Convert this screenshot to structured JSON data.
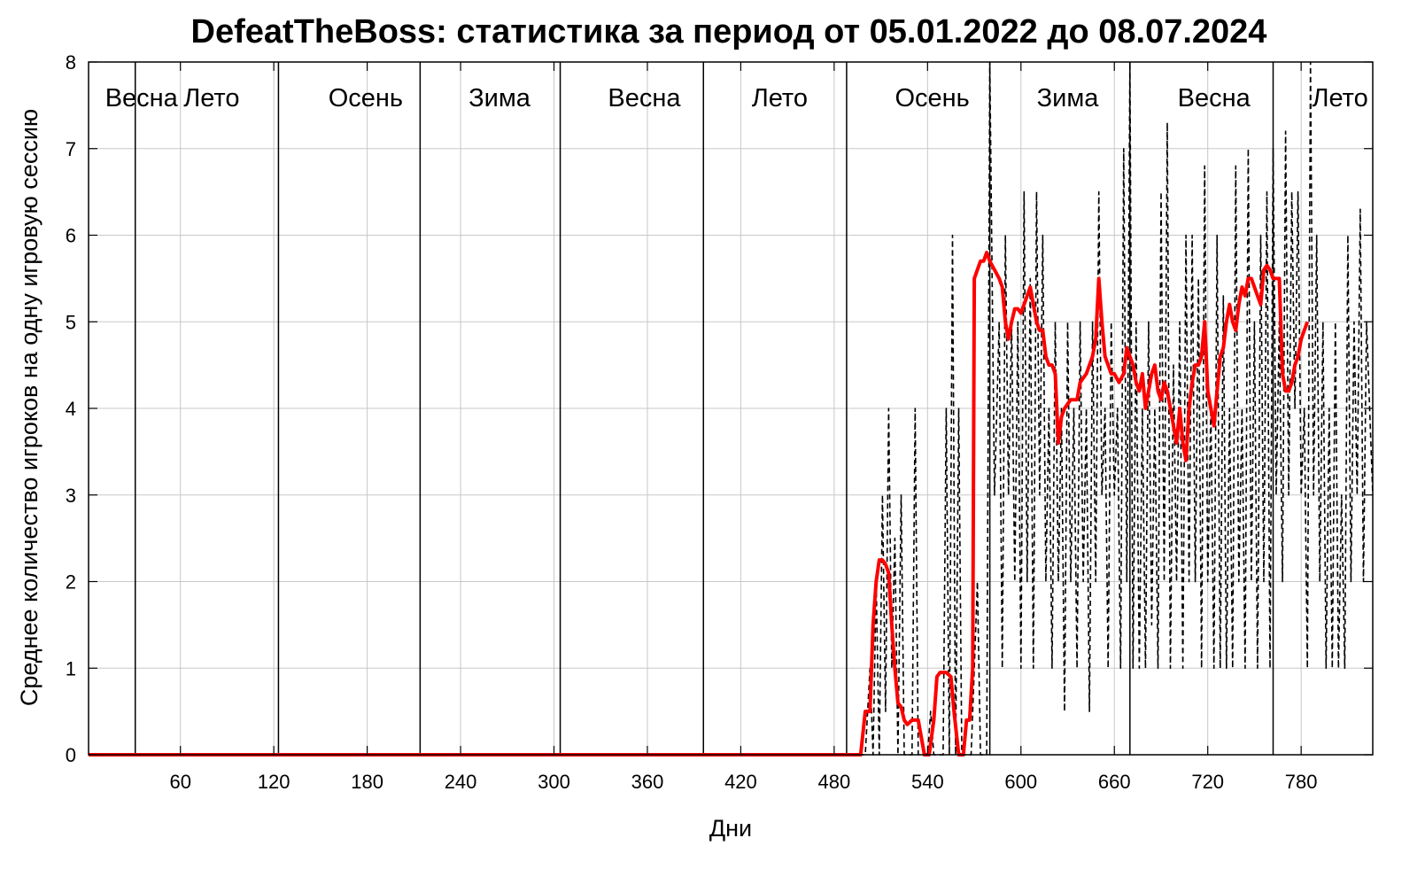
{
  "chart_data": {
    "type": "line",
    "title": "DefeatTheBoss: статистика за период от 05.01.2022 до 08.07.2024",
    "xlabel": "Дни",
    "ylabel": "Среднее количество игроков на одну игровую сессию",
    "xlim": [
      1,
      826
    ],
    "ylim": [
      0,
      8
    ],
    "x_ticks": [
      60,
      120,
      180,
      240,
      300,
      360,
      420,
      480,
      540,
      600,
      660,
      720,
      780
    ],
    "y_ticks": [
      0,
      1,
      2,
      3,
      4,
      5,
      6,
      7,
      8
    ],
    "grid": true,
    "season_boundaries": [
      31,
      123,
      214,
      304,
      396,
      488,
      580,
      670,
      762
    ],
    "season_labels": [
      {
        "label": "Весна",
        "x": 35
      },
      {
        "label": "Лето",
        "x": 80
      },
      {
        "label": "Осень",
        "x": 179
      },
      {
        "label": "Зима",
        "x": 265
      },
      {
        "label": "Весна",
        "x": 358
      },
      {
        "label": "Лето",
        "x": 445
      },
      {
        "label": "Осень",
        "x": 543
      },
      {
        "label": "Зима",
        "x": 630
      },
      {
        "label": "Весна",
        "x": 724
      },
      {
        "label": "Лето",
        "x": 805
      }
    ],
    "series": [
      {
        "style": "dashed",
        "color": "#000000",
        "points": [
          [
            1,
            0
          ],
          [
            500,
            0
          ],
          [
            503,
            1
          ],
          [
            505,
            0
          ],
          [
            507,
            2
          ],
          [
            509,
            0
          ],
          [
            511,
            3
          ],
          [
            513,
            0.5
          ],
          [
            515,
            4
          ],
          [
            517,
            1
          ],
          [
            519,
            2.5
          ],
          [
            521,
            0
          ],
          [
            523,
            3
          ],
          [
            525,
            0
          ],
          [
            530,
            0
          ],
          [
            532,
            4
          ],
          [
            534,
            0
          ],
          [
            540,
            0
          ],
          [
            542,
            0.5
          ],
          [
            544,
            0
          ],
          [
            550,
            0
          ],
          [
            552,
            4
          ],
          [
            554,
            0
          ],
          [
            556,
            6
          ],
          [
            558,
            0
          ],
          [
            560,
            4
          ],
          [
            562,
            0
          ],
          [
            568,
            0
          ],
          [
            570,
            1
          ],
          [
            572,
            2
          ],
          [
            574,
            0
          ],
          [
            578,
            0
          ],
          [
            580,
            8
          ],
          [
            583,
            3
          ],
          [
            586,
            5
          ],
          [
            588,
            1
          ],
          [
            590,
            6
          ],
          [
            592,
            3
          ],
          [
            594,
            5
          ],
          [
            596,
            2
          ],
          [
            598,
            5
          ],
          [
            600,
            1
          ],
          [
            602,
            6.5
          ],
          [
            604,
            2
          ],
          [
            606,
            5.5
          ],
          [
            608,
            1
          ],
          [
            610,
            6.5
          ],
          [
            612,
            3
          ],
          [
            614,
            6
          ],
          [
            616,
            2
          ],
          [
            618,
            4
          ],
          [
            620,
            1
          ],
          [
            622,
            5
          ],
          [
            624,
            2
          ],
          [
            626,
            4
          ],
          [
            628,
            0.5
          ],
          [
            630,
            5
          ],
          [
            632,
            2
          ],
          [
            634,
            4
          ],
          [
            636,
            1
          ],
          [
            638,
            5
          ],
          [
            640,
            2
          ],
          [
            642,
            4
          ],
          [
            644,
            0.5
          ],
          [
            646,
            5
          ],
          [
            648,
            2
          ],
          [
            650,
            6.5
          ],
          [
            652,
            3
          ],
          [
            654,
            4
          ],
          [
            656,
            1
          ],
          [
            658,
            5
          ],
          [
            660,
            3
          ],
          [
            662,
            4
          ],
          [
            664,
            1
          ],
          [
            666,
            7
          ],
          [
            668,
            2
          ],
          [
            670,
            8
          ],
          [
            672,
            1
          ],
          [
            674,
            5
          ],
          [
            676,
            1
          ],
          [
            678,
            4
          ],
          [
            680,
            1
          ],
          [
            682,
            5
          ],
          [
            684,
            1.5
          ],
          [
            686,
            4
          ],
          [
            688,
            1
          ],
          [
            690,
            6.5
          ],
          [
            692,
            2
          ],
          [
            694,
            7.3
          ],
          [
            696,
            1
          ],
          [
            698,
            4.5
          ],
          [
            700,
            2
          ],
          [
            702,
            5
          ],
          [
            704,
            1
          ],
          [
            706,
            6
          ],
          [
            708,
            2
          ],
          [
            710,
            6
          ],
          [
            712,
            2
          ],
          [
            714,
            5.5
          ],
          [
            716,
            1
          ],
          [
            718,
            6.8
          ],
          [
            720,
            2
          ],
          [
            722,
            4
          ],
          [
            724,
            1
          ],
          [
            726,
            6
          ],
          [
            728,
            1
          ],
          [
            730,
            5.3
          ],
          [
            732,
            1
          ],
          [
            734,
            4
          ],
          [
            736,
            1
          ],
          [
            738,
            6.8
          ],
          [
            740,
            2
          ],
          [
            742,
            4
          ],
          [
            744,
            1
          ],
          [
            746,
            7
          ],
          [
            748,
            2
          ],
          [
            750,
            5
          ],
          [
            752,
            1
          ],
          [
            754,
            6
          ],
          [
            756,
            2
          ],
          [
            758,
            6.5
          ],
          [
            760,
            1
          ],
          [
            762,
            7
          ],
          [
            764,
            3
          ],
          [
            766,
            5
          ],
          [
            768,
            2
          ],
          [
            770,
            7.2
          ],
          [
            772,
            3
          ],
          [
            774,
            6.5
          ],
          [
            776,
            4
          ],
          [
            778,
            6.5
          ],
          [
            780,
            3
          ],
          [
            782,
            4
          ],
          [
            784,
            1
          ],
          [
            786,
            8
          ],
          [
            788,
            3
          ],
          [
            790,
            6
          ],
          [
            792,
            2
          ],
          [
            794,
            5
          ],
          [
            796,
            1
          ],
          [
            798,
            4
          ],
          [
            800,
            1
          ],
          [
            802,
            5
          ],
          [
            804,
            1
          ],
          [
            806,
            3
          ],
          [
            808,
            1
          ],
          [
            810,
            6
          ],
          [
            812,
            2
          ],
          [
            814,
            5
          ],
          [
            816,
            3
          ],
          [
            818,
            6.3
          ],
          [
            820,
            2
          ],
          [
            822,
            5
          ],
          [
            826,
            3
          ]
        ]
      },
      {
        "style": "solid",
        "color": "#ff0000",
        "points": [
          [
            1,
            0
          ],
          [
            497,
            0
          ],
          [
            500,
            0.5
          ],
          [
            503,
            0.5
          ],
          [
            505,
            1.5
          ],
          [
            507,
            2
          ],
          [
            509,
            2.25
          ],
          [
            511,
            2.25
          ],
          [
            513,
            2.2
          ],
          [
            515,
            2.1
          ],
          [
            517,
            1.5
          ],
          [
            519,
            1
          ],
          [
            521,
            0.6
          ],
          [
            523,
            0.55
          ],
          [
            525,
            0.4
          ],
          [
            527,
            0.35
          ],
          [
            530,
            0.4
          ],
          [
            534,
            0.4
          ],
          [
            536,
            0.2
          ],
          [
            538,
            0
          ],
          [
            541,
            0
          ],
          [
            544,
            0.4
          ],
          [
            546,
            0.9
          ],
          [
            548,
            0.95
          ],
          [
            552,
            0.95
          ],
          [
            555,
            0.9
          ],
          [
            557,
            0.5
          ],
          [
            560,
            0
          ],
          [
            563,
            0
          ],
          [
            565,
            0.4
          ],
          [
            567,
            0.4
          ],
          [
            569,
            1
          ],
          [
            570,
            5.5
          ],
          [
            572,
            5.6
          ],
          [
            574,
            5.7
          ],
          [
            576,
            5.7
          ],
          [
            578,
            5.8
          ],
          [
            580,
            5.7
          ],
          [
            583,
            5.6
          ],
          [
            586,
            5.5
          ],
          [
            588,
            5.4
          ],
          [
            590,
            5
          ],
          [
            592,
            4.8
          ],
          [
            594,
            5
          ],
          [
            596,
            5.15
          ],
          [
            598,
            5.15
          ],
          [
            600,
            5.1
          ],
          [
            602,
            5.2
          ],
          [
            604,
            5.3
          ],
          [
            606,
            5.4
          ],
          [
            608,
            5.2
          ],
          [
            610,
            5
          ],
          [
            612,
            4.9
          ],
          [
            614,
            4.9
          ],
          [
            616,
            4.6
          ],
          [
            618,
            4.5
          ],
          [
            620,
            4.5
          ],
          [
            622,
            4.4
          ],
          [
            624,
            3.6
          ],
          [
            626,
            3.9
          ],
          [
            628,
            4
          ],
          [
            632,
            4.1
          ],
          [
            636,
            4.1
          ],
          [
            638,
            4.3
          ],
          [
            642,
            4.4
          ],
          [
            646,
            4.6
          ],
          [
            648,
            4.8
          ],
          [
            650,
            5.5
          ],
          [
            652,
            5
          ],
          [
            654,
            4.6
          ],
          [
            656,
            4.5
          ],
          [
            658,
            4.4
          ],
          [
            660,
            4.4
          ],
          [
            663,
            4.3
          ],
          [
            666,
            4.4
          ],
          [
            668,
            4.7
          ],
          [
            670,
            4.6
          ],
          [
            672,
            4.5
          ],
          [
            674,
            4.3
          ],
          [
            676,
            4.2
          ],
          [
            678,
            4.4
          ],
          [
            680,
            4
          ],
          [
            682,
            4.2
          ],
          [
            684,
            4.4
          ],
          [
            686,
            4.5
          ],
          [
            688,
            4.2
          ],
          [
            690,
            4.1
          ],
          [
            692,
            4.3
          ],
          [
            694,
            4.2
          ],
          [
            696,
            4
          ],
          [
            698,
            3.8
          ],
          [
            700,
            3.6
          ],
          [
            702,
            4
          ],
          [
            704,
            3.6
          ],
          [
            706,
            3.4
          ],
          [
            708,
            4
          ],
          [
            710,
            4.3
          ],
          [
            712,
            4.5
          ],
          [
            714,
            4.5
          ],
          [
            716,
            4.6
          ],
          [
            718,
            5
          ],
          [
            720,
            4.2
          ],
          [
            722,
            4
          ],
          [
            724,
            3.8
          ],
          [
            726,
            4.2
          ],
          [
            728,
            4.6
          ],
          [
            730,
            4.7
          ],
          [
            732,
            5
          ],
          [
            734,
            5.2
          ],
          [
            736,
            5
          ],
          [
            738,
            4.9
          ],
          [
            740,
            5.2
          ],
          [
            742,
            5.4
          ],
          [
            744,
            5.3
          ],
          [
            746,
            5.5
          ],
          [
            748,
            5.5
          ],
          [
            750,
            5.4
          ],
          [
            752,
            5.3
          ],
          [
            754,
            5.2
          ],
          [
            756,
            5.6
          ],
          [
            758,
            5.65
          ],
          [
            760,
            5.6
          ],
          [
            762,
            5.5
          ],
          [
            764,
            5.5
          ],
          [
            766,
            5.5
          ],
          [
            768,
            4.4
          ],
          [
            770,
            4.2
          ],
          [
            772,
            4.2
          ],
          [
            774,
            4.3
          ],
          [
            776,
            4.5
          ],
          [
            778,
            4.6
          ],
          [
            780,
            4.8
          ],
          [
            782,
            4.9
          ],
          [
            784,
            5
          ]
        ]
      }
    ]
  }
}
